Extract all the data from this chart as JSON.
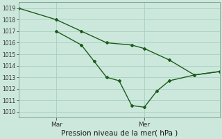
{
  "title": "Pression niveau de la mer( hPa )",
  "background_color": "#cce8dc",
  "grid_color": "#aacfbf",
  "line_color": "#1a5c1a",
  "spine_color": "#7a9a8a",
  "ylim": [
    1009.5,
    1019.5
  ],
  "yticks": [
    1010,
    1011,
    1012,
    1013,
    1014,
    1015,
    1016,
    1017,
    1018,
    1019
  ],
  "xlim": [
    0,
    8
  ],
  "mar_x": 1.5,
  "mer_x": 5.0,
  "line1_x": [
    0,
    1.5,
    2.5,
    3.5,
    4.5,
    5.0,
    6.0,
    7.0,
    8.0
  ],
  "line1_y": [
    1019.0,
    1018.0,
    1017.0,
    1016.0,
    1015.8,
    1015.5,
    1014.5,
    1013.2,
    1013.5
  ],
  "line2_x": [
    1.5,
    2.5,
    3.0,
    3.5,
    4.0,
    4.5,
    5.0,
    5.5,
    6.0,
    7.0,
    8.0
  ],
  "line2_y": [
    1017.0,
    1015.8,
    1014.4,
    1013.0,
    1012.7,
    1010.55,
    1010.4,
    1011.8,
    1012.7,
    1013.2,
    1013.5
  ]
}
